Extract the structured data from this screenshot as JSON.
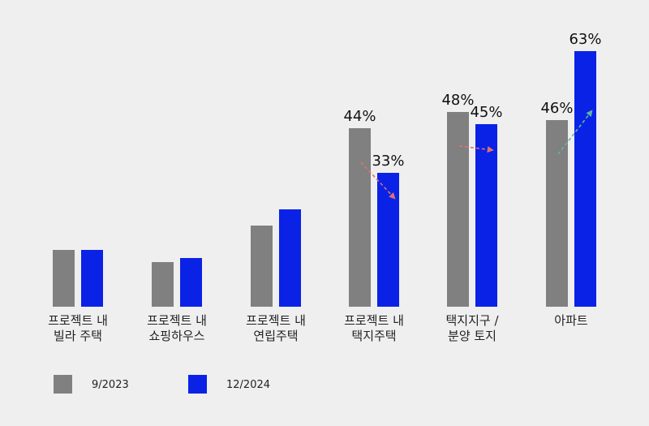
{
  "chart_data": {
    "type": "bar",
    "categories": [
      [
        "프로젝트 내",
        "빌라 주택"
      ],
      [
        "프로젝트 내",
        "쇼핑하우스"
      ],
      [
        "프로젝트 내",
        "연립주택"
      ],
      [
        "프로젝트 내",
        "택지주택"
      ],
      [
        "택지지구 /",
        "분양 토지"
      ],
      [
        "아파트"
      ]
    ],
    "series": [
      {
        "name": "9/2023",
        "color": "#808080",
        "values": [
          14,
          11,
          20,
          44,
          48,
          46
        ]
      },
      {
        "name": "12/2024",
        "color": "#0a22e6",
        "values": [
          14,
          12,
          24,
          33,
          45,
          63
        ]
      }
    ],
    "data_labels": [
      {
        "category_index": 3,
        "series_index": 0,
        "text": "44%"
      },
      {
        "category_index": 3,
        "series_index": 1,
        "text": "33%"
      },
      {
        "category_index": 4,
        "series_index": 0,
        "text": "48%"
      },
      {
        "category_index": 4,
        "series_index": 1,
        "text": "45%"
      },
      {
        "category_index": 5,
        "series_index": 0,
        "text": "46%"
      },
      {
        "category_index": 5,
        "series_index": 1,
        "text": "63%"
      }
    ],
    "trend_arrows": [
      {
        "category_index": 3,
        "direction": "down",
        "color": "#e07070"
      },
      {
        "category_index": 4,
        "direction": "down",
        "color": "#e07070"
      },
      {
        "category_index": 5,
        "direction": "up",
        "color": "#5fb8a0"
      }
    ],
    "ylim": [
      0,
      70
    ],
    "grid": false,
    "legend_position": "bottom-left"
  }
}
